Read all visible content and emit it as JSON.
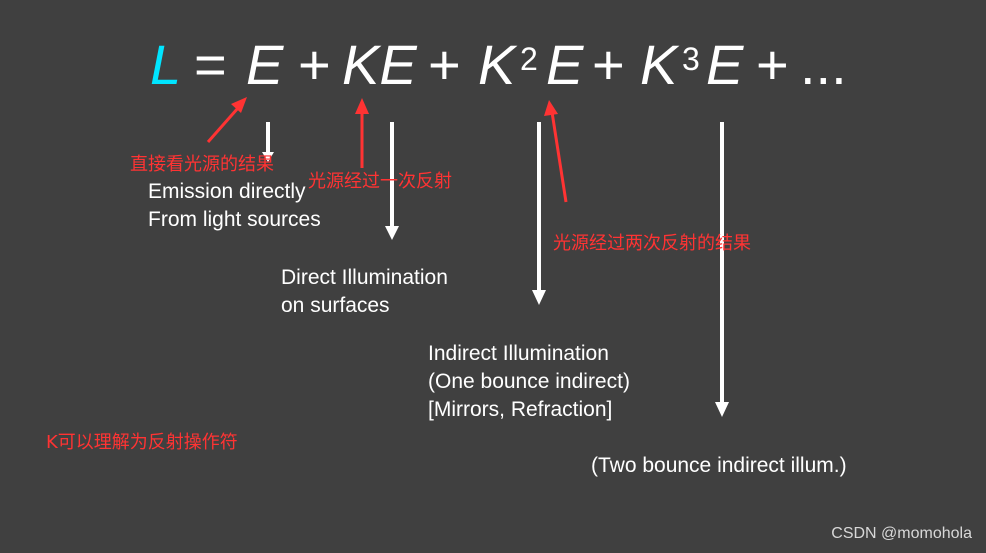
{
  "equation": {
    "L": "L",
    "eq": "=",
    "E1": "E",
    "p1": "+",
    "KE": "KE",
    "p2": "+",
    "K2": "K",
    "exp2": "2",
    "E3": "E",
    "p3": "+",
    "K3": "K",
    "exp3": "3",
    "E4": "E",
    "p4": "+",
    "dots": "..."
  },
  "labels": {
    "emission_line1": "Emission directly",
    "emission_line2": "From light sources",
    "direct_line1": "Direct Illumination",
    "direct_line2": "on surfaces",
    "indirect_line1": "Indirect Illumination",
    "indirect_line2": "(One bounce indirect)",
    "indirect_line3": "[Mirrors, Refraction]",
    "two_bounce": "(Two bounce indirect illum.)"
  },
  "annotations": {
    "direct_view": "直接看光源的结果",
    "one_bounce": "光源经过一次反射",
    "two_bounce": "光源经过两次反射的结果",
    "k_meaning": "K可以理解为反射操作符"
  },
  "watermark": "CSDN @momohola",
  "colors": {
    "background": "#404040",
    "L_color": "#00e5ff",
    "text": "#ffffff",
    "annotation": "#ff3333"
  }
}
